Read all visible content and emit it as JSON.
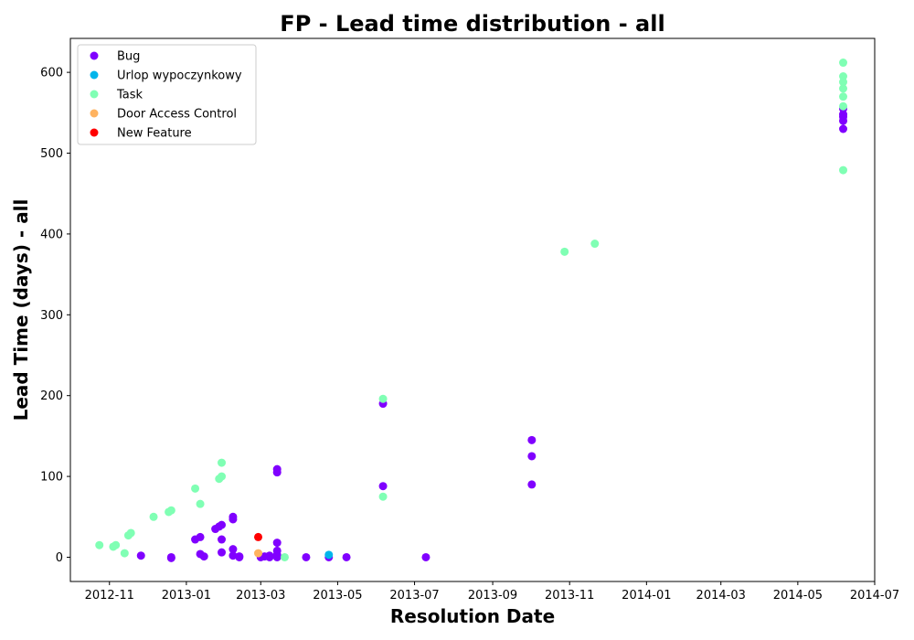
{
  "chart_data": {
    "type": "scatter",
    "title": "FP - Lead time distribution - all",
    "xlabel": "Resolution Date",
    "ylabel": "Lead Time (days) - all",
    "x_type": "date",
    "xlim": [
      "2012-10-01",
      "2014-07-01"
    ],
    "ylim": [
      -30,
      642
    ],
    "x_ticks": [
      "2012-11",
      "2013-01",
      "2013-03",
      "2013-05",
      "2013-07",
      "2013-09",
      "2013-11",
      "2014-01",
      "2014-03",
      "2014-05",
      "2014-07"
    ],
    "y_ticks": [
      0,
      100,
      200,
      300,
      400,
      500,
      600
    ],
    "grid": false,
    "legend_position": "top-left",
    "series": [
      {
        "name": "Bug",
        "color": "#8000ff",
        "points": [
          [
            "2012-11-26",
            2
          ],
          [
            "2012-12-20",
            0
          ],
          [
            "2012-12-20",
            -1
          ],
          [
            "2013-01-08",
            22
          ],
          [
            "2013-01-12",
            25
          ],
          [
            "2013-01-12",
            4
          ],
          [
            "2013-01-15",
            1
          ],
          [
            "2013-01-24",
            35
          ],
          [
            "2013-01-27",
            38
          ],
          [
            "2013-01-29",
            40
          ],
          [
            "2013-01-29",
            22
          ],
          [
            "2013-01-29",
            6
          ],
          [
            "2013-02-07",
            50
          ],
          [
            "2013-02-07",
            47
          ],
          [
            "2013-02-07",
            10
          ],
          [
            "2013-02-07",
            2
          ],
          [
            "2013-02-12",
            1
          ],
          [
            "2013-02-12",
            0
          ],
          [
            "2013-03-01",
            0
          ],
          [
            "2013-03-04",
            1
          ],
          [
            "2013-03-08",
            2
          ],
          [
            "2013-03-08",
            0
          ],
          [
            "2013-03-14",
            109
          ],
          [
            "2013-03-14",
            105
          ],
          [
            "2013-03-14",
            18
          ],
          [
            "2013-03-14",
            8
          ],
          [
            "2013-03-14",
            3
          ],
          [
            "2013-03-14",
            0
          ],
          [
            "2013-04-06",
            0
          ],
          [
            "2013-04-24",
            0
          ],
          [
            "2013-05-08",
            0
          ],
          [
            "2013-06-06",
            190
          ],
          [
            "2013-06-06",
            88
          ],
          [
            "2013-07-10",
            0
          ],
          [
            "2013-10-02",
            145
          ],
          [
            "2013-10-02",
            125
          ],
          [
            "2013-10-02",
            90
          ],
          [
            "2014-06-06",
            555
          ],
          [
            "2014-06-06",
            548
          ],
          [
            "2014-06-06",
            545
          ],
          [
            "2014-06-06",
            540
          ],
          [
            "2014-06-06",
            530
          ]
        ]
      },
      {
        "name": "Urlop wypoczynkowy",
        "color": "#00b5eb",
        "points": [
          [
            "2013-04-24",
            3
          ]
        ]
      },
      {
        "name": "Task",
        "color": "#80ffb4",
        "points": [
          [
            "2012-10-24",
            15
          ],
          [
            "2012-11-04",
            13
          ],
          [
            "2012-11-06",
            15
          ],
          [
            "2012-11-13",
            5
          ],
          [
            "2012-11-16",
            27
          ],
          [
            "2012-11-18",
            30
          ],
          [
            "2012-12-06",
            50
          ],
          [
            "2012-12-18",
            56
          ],
          [
            "2012-12-20",
            58
          ],
          [
            "2013-01-08",
            85
          ],
          [
            "2013-01-12",
            66
          ],
          [
            "2013-01-29",
            117
          ],
          [
            "2013-01-29",
            100
          ],
          [
            "2013-01-27",
            97
          ],
          [
            "2013-03-20",
            0
          ],
          [
            "2013-06-06",
            196
          ],
          [
            "2013-06-06",
            75
          ],
          [
            "2013-10-28",
            378
          ],
          [
            "2013-11-21",
            388
          ],
          [
            "2014-06-06",
            612
          ],
          [
            "2014-06-06",
            595
          ],
          [
            "2014-06-06",
            588
          ],
          [
            "2014-06-06",
            580
          ],
          [
            "2014-06-06",
            570
          ],
          [
            "2014-06-06",
            558
          ],
          [
            "2014-06-06",
            479
          ]
        ]
      },
      {
        "name": "Door Access Control",
        "color": "#ffb360",
        "points": [
          [
            "2013-02-27",
            5
          ]
        ]
      },
      {
        "name": "New Feature",
        "color": "#ff0000",
        "points": [
          [
            "2013-02-27",
            25
          ]
        ]
      }
    ]
  }
}
